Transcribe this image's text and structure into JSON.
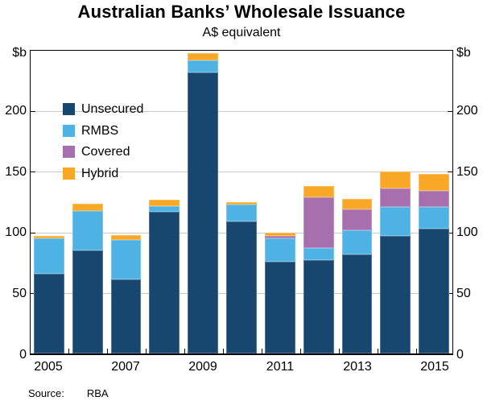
{
  "title": "Australian Banks’ Wholesale Issuance",
  "subtitle": "A$ equivalent",
  "y_axis": {
    "unit_label": "$b",
    "tick_values": [
      0,
      50,
      100,
      150,
      200
    ],
    "max": 250
  },
  "x_axis": {
    "visible_tick_labels": [
      "2005",
      "2007",
      "2009",
      "2011",
      "2013",
      "2015"
    ]
  },
  "source": {
    "label": "Source:",
    "value": "RBA"
  },
  "colors": {
    "unsecured": "#17476E",
    "rmbs": "#4FB2E4",
    "covered": "#A76FAD",
    "hybrid": "#F9A826",
    "gridline": "#C9C9C9",
    "frame": "#000000"
  },
  "chart_data": {
    "type": "bar",
    "stacked": true,
    "title": "Australian Banks’ Wholesale Issuance",
    "subtitle": "A$ equivalent",
    "ylabel": "$b",
    "ylim": [
      0,
      250
    ],
    "gridlines": [
      50,
      100,
      150,
      200
    ],
    "legend_position": "top-left",
    "categories": [
      2005,
      2006,
      2007,
      2008,
      2009,
      2010,
      2011,
      2012,
      2013,
      2014,
      2015
    ],
    "series": [
      {
        "name": "Unsecured",
        "color": "#17476E",
        "values": [
          66,
          85,
          61,
          117,
          232,
          109,
          76,
          77,
          82,
          97,
          103
        ]
      },
      {
        "name": "RMBS",
        "color": "#4FB2E4",
        "values": [
          29,
          33,
          33,
          5,
          10,
          14,
          19,
          10,
          20,
          24,
          18
        ]
      },
      {
        "name": "Covered",
        "color": "#A76FAD",
        "values": [
          0,
          0,
          0,
          0,
          0,
          0,
          2,
          42,
          17,
          15,
          13
        ]
      },
      {
        "name": "Hybrid",
        "color": "#F9A826",
        "values": [
          2,
          6,
          4,
          5,
          6,
          2,
          3,
          9,
          9,
          14,
          14
        ]
      }
    ],
    "totals": [
      97,
      124,
      98,
      127,
      248,
      125,
      100,
      138,
      128,
      150,
      148
    ]
  }
}
